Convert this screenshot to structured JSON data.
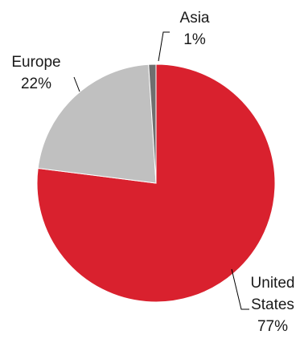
{
  "chart_data": {
    "type": "pie",
    "slices": [
      {
        "label_lines": [
          "United",
          "States"
        ],
        "percent_label": "77%",
        "value": 77,
        "color": "#d9212e"
      },
      {
        "label_lines": [
          "Europe"
        ],
        "percent_label": "22%",
        "value": 22,
        "color": "#c0c0c0"
      },
      {
        "label_lines": [
          "Asia"
        ],
        "percent_label": "1%",
        "value": 1,
        "color": "#6f6f6f"
      }
    ],
    "start_angle_deg": 0,
    "direction": "clockwise",
    "legend": "none",
    "border_color": "#ffffff"
  }
}
